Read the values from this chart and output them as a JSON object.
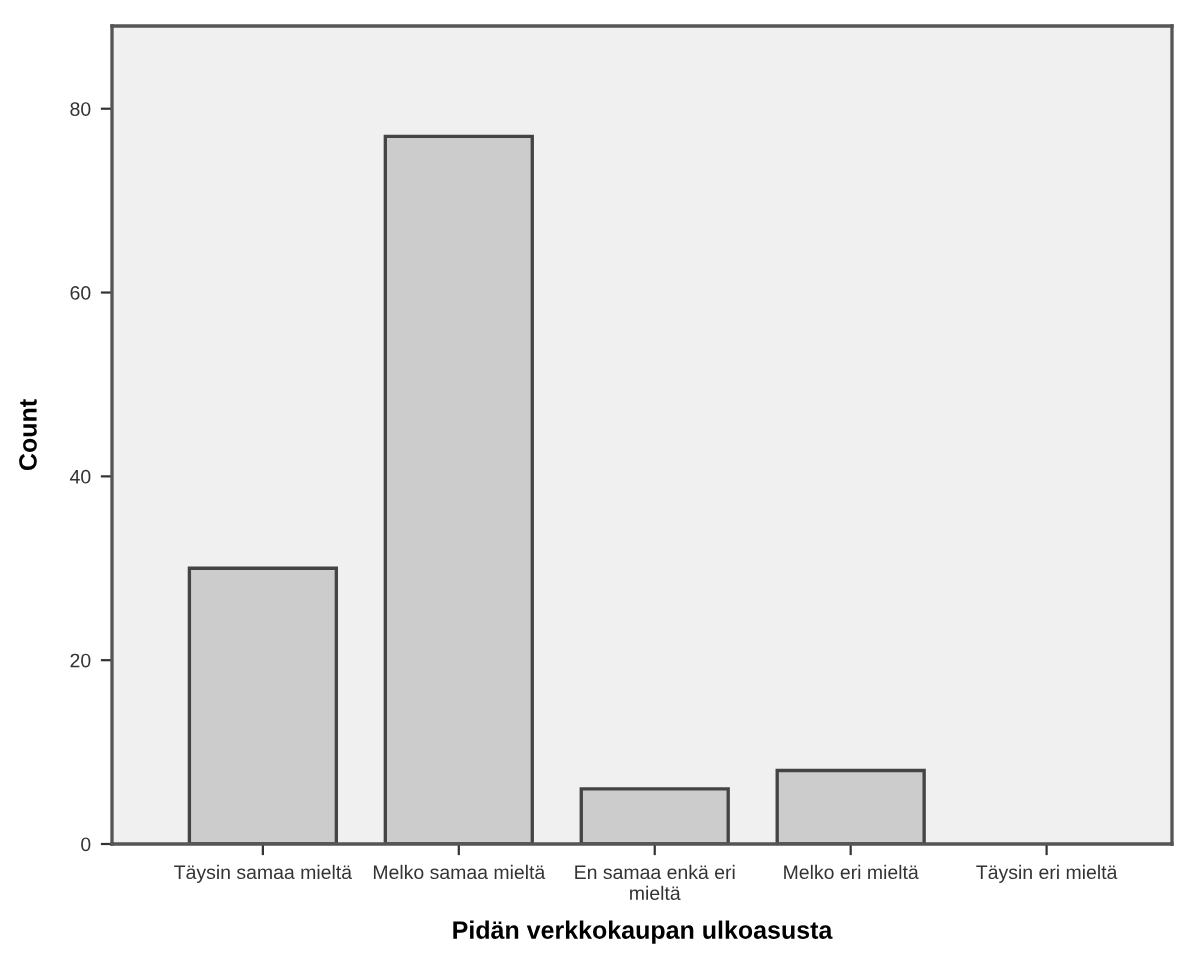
{
  "chart_data": {
    "type": "bar",
    "xlabel": "Pidän verkkokaupan ulkoasusta",
    "ylabel": "Count",
    "categories": [
      "Täysin samaa mieltä",
      "Melko samaa mieltä",
      "En samaa enkä eri\nmieltä",
      "Melko eri mieltä",
      "Täysin eri mieltä"
    ],
    "values": [
      30,
      77,
      6,
      8,
      0
    ],
    "color": "#cccccc",
    "ylim": [
      0,
      89
    ],
    "yticks": [
      0,
      20,
      40,
      60,
      80
    ],
    "grid": false,
    "legend": false
  }
}
